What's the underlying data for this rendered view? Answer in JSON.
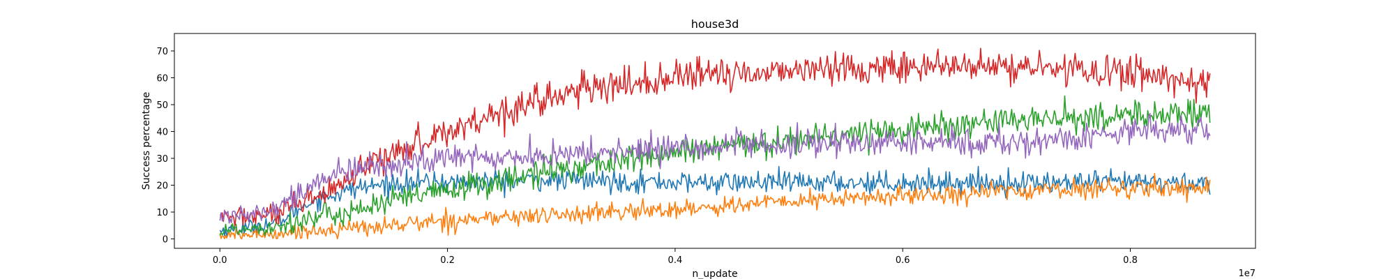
{
  "chart_data": {
    "type": "line",
    "title": "house3d",
    "xlabel": "n_update",
    "ylabel": "Success percentage",
    "x_offset_text": "1e7",
    "xlim": [
      -0.04,
      0.91
    ],
    "ylim": [
      -3.5,
      76.5
    ],
    "x_ticks": [
      0.0,
      0.2,
      0.4,
      0.6,
      0.8
    ],
    "x_tick_labels": [
      "0.0",
      "0.2",
      "0.4",
      "0.6",
      "0.8"
    ],
    "y_ticks": [
      0,
      10,
      20,
      30,
      40,
      50,
      60,
      70
    ],
    "y_tick_labels": [
      "0",
      "10",
      "20",
      "30",
      "40",
      "50",
      "60",
      "70"
    ],
    "grid": false,
    "legend": "none",
    "x_range": [
      0.0,
      0.87
    ],
    "n_points": 860,
    "series": [
      {
        "color": "#1f77b4",
        "noise": 2.0,
        "trend_x": [
          0.0,
          0.02,
          0.05,
          0.08,
          0.12,
          0.16,
          0.2,
          0.3,
          0.4,
          0.5,
          0.6,
          0.7,
          0.8,
          0.87
        ],
        "trend_y": [
          3,
          4,
          6,
          14,
          19,
          21,
          21,
          22,
          21,
          21,
          21,
          21,
          21,
          21
        ]
      },
      {
        "color": "#ff7f0e",
        "noise": 1.7,
        "trend_x": [
          0.0,
          0.05,
          0.1,
          0.15,
          0.2,
          0.3,
          0.4,
          0.5,
          0.6,
          0.7,
          0.8,
          0.87
        ],
        "trend_y": [
          1,
          2,
          3.5,
          5,
          7,
          9,
          11,
          14,
          16,
          18,
          19,
          19
        ]
      },
      {
        "color": "#2ca02c",
        "noise": 2.6,
        "trend_x": [
          0.0,
          0.05,
          0.1,
          0.15,
          0.2,
          0.3,
          0.4,
          0.5,
          0.6,
          0.7,
          0.8,
          0.87
        ],
        "trend_y": [
          3,
          5,
          9,
          14,
          18,
          26,
          32,
          37,
          41,
          44,
          46,
          47
        ]
      },
      {
        "color": "#d62728",
        "noise": 3.0,
        "trend_x": [
          0.0,
          0.05,
          0.1,
          0.15,
          0.2,
          0.25,
          0.3,
          0.4,
          0.5,
          0.6,
          0.7,
          0.8,
          0.87
        ],
        "trend_y": [
          8,
          9,
          18,
          32,
          40,
          48,
          54,
          60,
          63,
          64,
          64,
          62,
          58
        ]
      },
      {
        "color": "#9467bd",
        "noise": 2.6,
        "trend_x": [
          0.0,
          0.05,
          0.1,
          0.15,
          0.2,
          0.3,
          0.4,
          0.5,
          0.6,
          0.7,
          0.75,
          0.8,
          0.87
        ],
        "trend_y": [
          8,
          12,
          24,
          28,
          30,
          31,
          34,
          35,
          36,
          36,
          37,
          41,
          41
        ]
      }
    ]
  }
}
